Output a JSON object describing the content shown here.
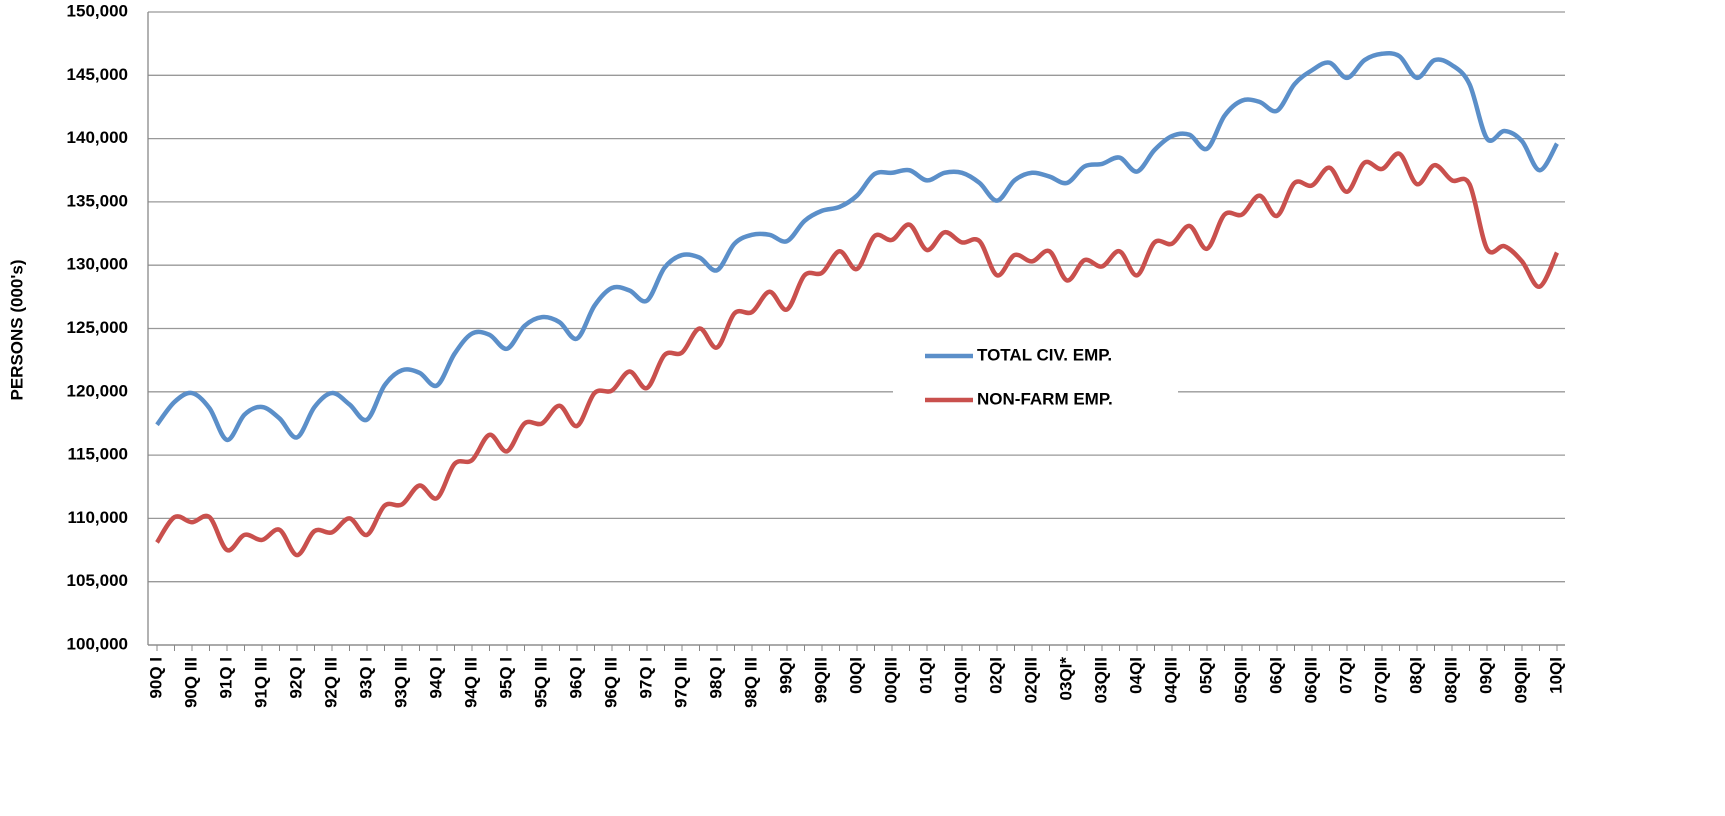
{
  "chart_data": {
    "type": "line",
    "ylabel": "PERSONS (000's)",
    "categories": [
      "90Q I",
      null,
      "90Q III",
      null,
      "91Q I",
      null,
      "91Q III",
      null,
      "92Q I",
      null,
      "92Q III",
      null,
      "93Q I",
      null,
      "93Q III",
      null,
      "94Q I",
      null,
      "94Q III",
      null,
      "95Q I",
      null,
      "95Q III",
      null,
      "96Q I",
      null,
      "96Q III",
      null,
      "97Q I",
      null,
      "97Q III",
      null,
      "98Q I",
      null,
      "98Q III",
      null,
      "99QI",
      null,
      "99QIII",
      null,
      "00QI",
      null,
      "00QIII",
      null,
      "01QI",
      null,
      "01QIII",
      null,
      "02QI",
      null,
      "02QIII",
      null,
      "03QI*",
      null,
      "03QIII",
      null,
      "04QI",
      null,
      "04QIII",
      null,
      "05QI",
      null,
      "05QIII",
      null,
      "06QI",
      null,
      "06QIII",
      null,
      "07QI",
      null,
      "07QIII",
      null,
      "08QI",
      null,
      "08QIII",
      null,
      "09QI",
      null,
      "09QIII",
      null,
      "10QI"
    ],
    "series": [
      {
        "name": "TOTAL CIV. EMP.",
        "color": "#5b8fc9",
        "values": [
          117400,
          119200,
          119900,
          118700,
          116200,
          118200,
          118800,
          117900,
          116400,
          118800,
          119900,
          119000,
          117800,
          120500,
          121700,
          121500,
          120500,
          123000,
          124600,
          124500,
          123400,
          125200,
          125900,
          125500,
          124200,
          126800,
          128200,
          128000,
          127200,
          129800,
          130800,
          130600,
          129600,
          131700,
          132400,
          132400,
          131900,
          133500,
          134300,
          134600,
          135500,
          137200,
          137300,
          137500,
          136700,
          137300,
          137300,
          136500,
          135100,
          136700,
          137300,
          137000,
          136500,
          137800,
          138000,
          138500,
          137400,
          139100,
          140200,
          140300,
          139200,
          141800,
          143000,
          142900,
          142200,
          144300,
          145400,
          146000,
          144800,
          146200,
          146700,
          146500,
          144800,
          146200,
          145800,
          144300,
          140000,
          140600,
          139800,
          137500,
          139600
        ]
      },
      {
        "name": "NON-FARM EMP.",
        "color": "#c9504d",
        "values": [
          108100,
          110100,
          109700,
          110100,
          107500,
          108700,
          108300,
          109100,
          107100,
          109000,
          108900,
          110000,
          108700,
          111000,
          111100,
          112600,
          111600,
          114300,
          114600,
          116600,
          115300,
          117500,
          117500,
          118900,
          117300,
          119900,
          120100,
          121600,
          120300,
          122900,
          123100,
          125000,
          123500,
          126200,
          126300,
          127900,
          126500,
          129200,
          129400,
          131100,
          129700,
          132300,
          132000,
          133200,
          131200,
          132600,
          131800,
          131900,
          129200,
          130800,
          130300,
          131100,
          128800,
          130400,
          129900,
          131100,
          129200,
          131800,
          131700,
          133100,
          131300,
          134000,
          134000,
          135500,
          133900,
          136500,
          136300,
          137700,
          135800,
          138100,
          137600,
          138800,
          136400,
          137900,
          136700,
          136400,
          131300,
          131500,
          130300,
          128300,
          131000
        ]
      }
    ],
    "ylim": [
      100000,
      150000
    ],
    "yticks": [
      {
        "value": 100000,
        "label": "100,000"
      },
      {
        "value": 105000,
        "label": "105,000"
      },
      {
        "value": 110000,
        "label": "110,000"
      },
      {
        "value": 115000,
        "label": "115,000"
      },
      {
        "value": 120000,
        "label": "120,000"
      },
      {
        "value": 125000,
        "label": "125,000"
      },
      {
        "value": 130000,
        "label": "130,000"
      },
      {
        "value": 135000,
        "label": "135,000"
      },
      {
        "value": 140000,
        "label": "140,000"
      },
      {
        "value": 145000,
        "label": "145,000"
      },
      {
        "value": 150000,
        "label": "150,000"
      }
    ],
    "grid": true,
    "legend": "center"
  }
}
